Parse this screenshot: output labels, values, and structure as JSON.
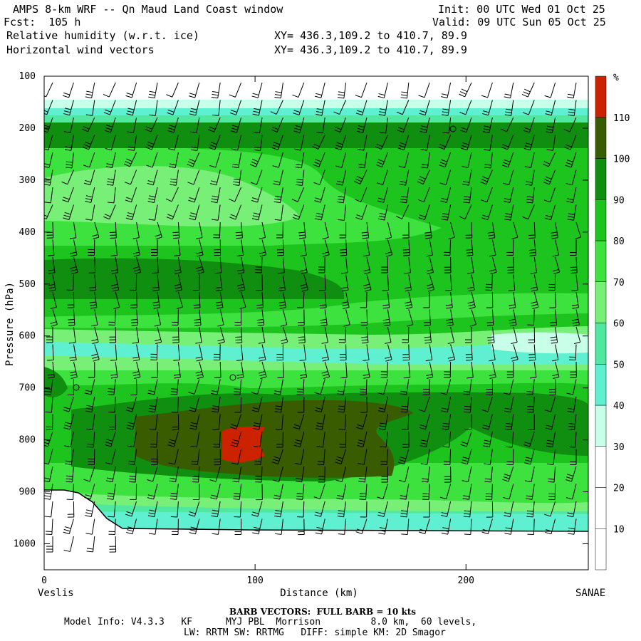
{
  "header": {
    "title": "AMPS 8-km WRF -- Qn Maud Land Coast window",
    "forecast": "Fcst:  105 h",
    "field1": "Relative humidity (w.r.t. ice)",
    "field2": "Horizontal wind vectors",
    "init": "Init: 00 UTC Wed 01 Oct 25",
    "valid": "Valid: 09 UTC Sun 05 Oct 25",
    "xy1": "XY= 436.3,109.2 to 410.7, 89.9",
    "xy2": "XY= 436.3,109.2 to 410.7, 89.9"
  },
  "chart_data": {
    "type": "contour",
    "ylabel": "Pressure (hPa)",
    "xlabel": "Distance (km)",
    "x_start_label": "Veslis",
    "x_end_label": "SANAE",
    "ylim": [
      1050,
      100
    ],
    "xlim": [
      0,
      258
    ],
    "y_ticks": [
      100,
      200,
      300,
      400,
      500,
      600,
      700,
      800,
      900,
      1000
    ],
    "x_ticks": [
      0,
      100,
      200
    ],
    "colorbar": {
      "unit": "%",
      "levels": [
        10,
        20,
        30,
        40,
        50,
        60,
        70,
        80,
        90,
        100,
        110
      ],
      "colors": [
        "#ffffff",
        "#ffffff",
        "#ffffff",
        "#c8ffe8",
        "#5ef0d0",
        "#50e8a0",
        "#78f078",
        "#3ee23e",
        "#1ec41e",
        "#108e10",
        "#3a5c00",
        "#cc2200"
      ]
    },
    "terrain_surface": [
      [
        0,
        890
      ],
      [
        10,
        893
      ],
      [
        20,
        900
      ],
      [
        30,
        925
      ],
      [
        40,
        960
      ],
      [
        50,
        972
      ],
      [
        100,
        974
      ],
      [
        180,
        974
      ],
      [
        258,
        975
      ]
    ],
    "rh_profile_left": [
      {
        "p": 100,
        "rh": 10
      },
      {
        "p": 160,
        "rh": 40
      },
      {
        "p": 200,
        "rh": 90
      },
      {
        "p": 300,
        "rh": 70
      },
      {
        "p": 400,
        "rh": 80
      },
      {
        "p": 500,
        "rh": 100
      },
      {
        "p": 600,
        "rh": 60
      },
      {
        "p": 700,
        "rh": 80
      },
      {
        "p": 800,
        "rh": 100
      },
      {
        "p": 900,
        "rh": 70
      }
    ],
    "max_rh_region": {
      "x_range": [
        83,
        105
      ],
      "p_range": [
        775,
        840
      ],
      "rh": 110
    }
  },
  "footer": {
    "barb_note": "BARB VECTORS:  FULL BARB = 10 kts",
    "model_line1": "Model Info: V4.3.3   KF      MYJ PBL  Morrison         8.0 km,  60 levels,",
    "model_line2": "LW: RRTM SW: RRTMG   DIFF: simple KM: 2D Smagor"
  }
}
